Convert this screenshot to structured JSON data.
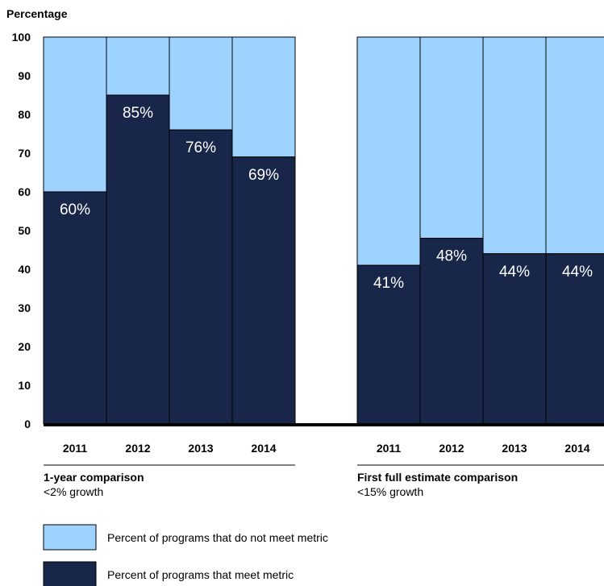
{
  "chart_data": {
    "type": "bar",
    "stacked": true,
    "ylabel": "Percentage",
    "ylim": [
      0,
      100
    ],
    "yticks": [
      0,
      10,
      20,
      30,
      40,
      50,
      60,
      70,
      80,
      90,
      100
    ],
    "groups": [
      {
        "title": "1-year comparison",
        "subtitle": "<2% growth",
        "categories": [
          "2011",
          "2012",
          "2013",
          "2014"
        ],
        "meet": [
          60,
          85,
          76,
          69
        ],
        "labels": [
          "60%",
          "85%",
          "76%",
          "69%"
        ]
      },
      {
        "title": "First full estimate comparison",
        "subtitle": "<15% growth",
        "categories": [
          "2011",
          "2012",
          "2013",
          "2014"
        ],
        "meet": [
          41,
          48,
          44,
          44
        ],
        "labels": [
          "41%",
          "48%",
          "44%",
          "44%"
        ]
      }
    ],
    "series": [
      {
        "name": "Percent of programs that do not meet metric",
        "color": "#9fd3ff"
      },
      {
        "name": "Percent of programs that meet metric",
        "color": "#172649"
      }
    ]
  }
}
